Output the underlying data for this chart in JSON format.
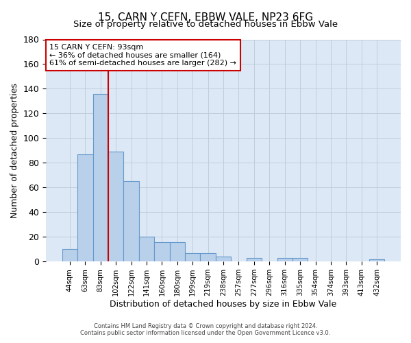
{
  "title": "15, CARN Y CEFN, EBBW VALE, NP23 6FG",
  "subtitle": "Size of property relative to detached houses in Ebbw Vale",
  "xlabel": "Distribution of detached houses by size in Ebbw Vale",
  "ylabel": "Number of detached properties",
  "bar_labels": [
    "44sqm",
    "63sqm",
    "83sqm",
    "102sqm",
    "122sqm",
    "141sqm",
    "160sqm",
    "180sqm",
    "199sqm",
    "219sqm",
    "238sqm",
    "257sqm",
    "277sqm",
    "296sqm",
    "316sqm",
    "335sqm",
    "354sqm",
    "374sqm",
    "393sqm",
    "413sqm",
    "432sqm"
  ],
  "bar_values": [
    10,
    87,
    136,
    89,
    65,
    20,
    16,
    16,
    7,
    7,
    4,
    0,
    3,
    0,
    3,
    3,
    0,
    0,
    0,
    0,
    2
  ],
  "bar_color": "#b8d0ea",
  "bar_edge_color": "#6699cc",
  "vline_color": "#cc0000",
  "ylim": [
    0,
    180
  ],
  "yticks": [
    0,
    20,
    40,
    60,
    80,
    100,
    120,
    140,
    160,
    180
  ],
  "annotation_title": "15 CARN Y CEFN: 93sqm",
  "annotation_line1": "← 36% of detached houses are smaller (164)",
  "annotation_line2": "61% of semi-detached houses are larger (282) →",
  "annotation_box_color": "#ffffff",
  "annotation_box_edge_color": "#cc0000",
  "footer1": "Contains HM Land Registry data © Crown copyright and database right 2024.",
  "footer2": "Contains public sector information licensed under the Open Government Licence v3.0.",
  "background_color": "#ffffff",
  "axes_bg_color": "#dce8f5",
  "grid_color": "#c0cedc"
}
